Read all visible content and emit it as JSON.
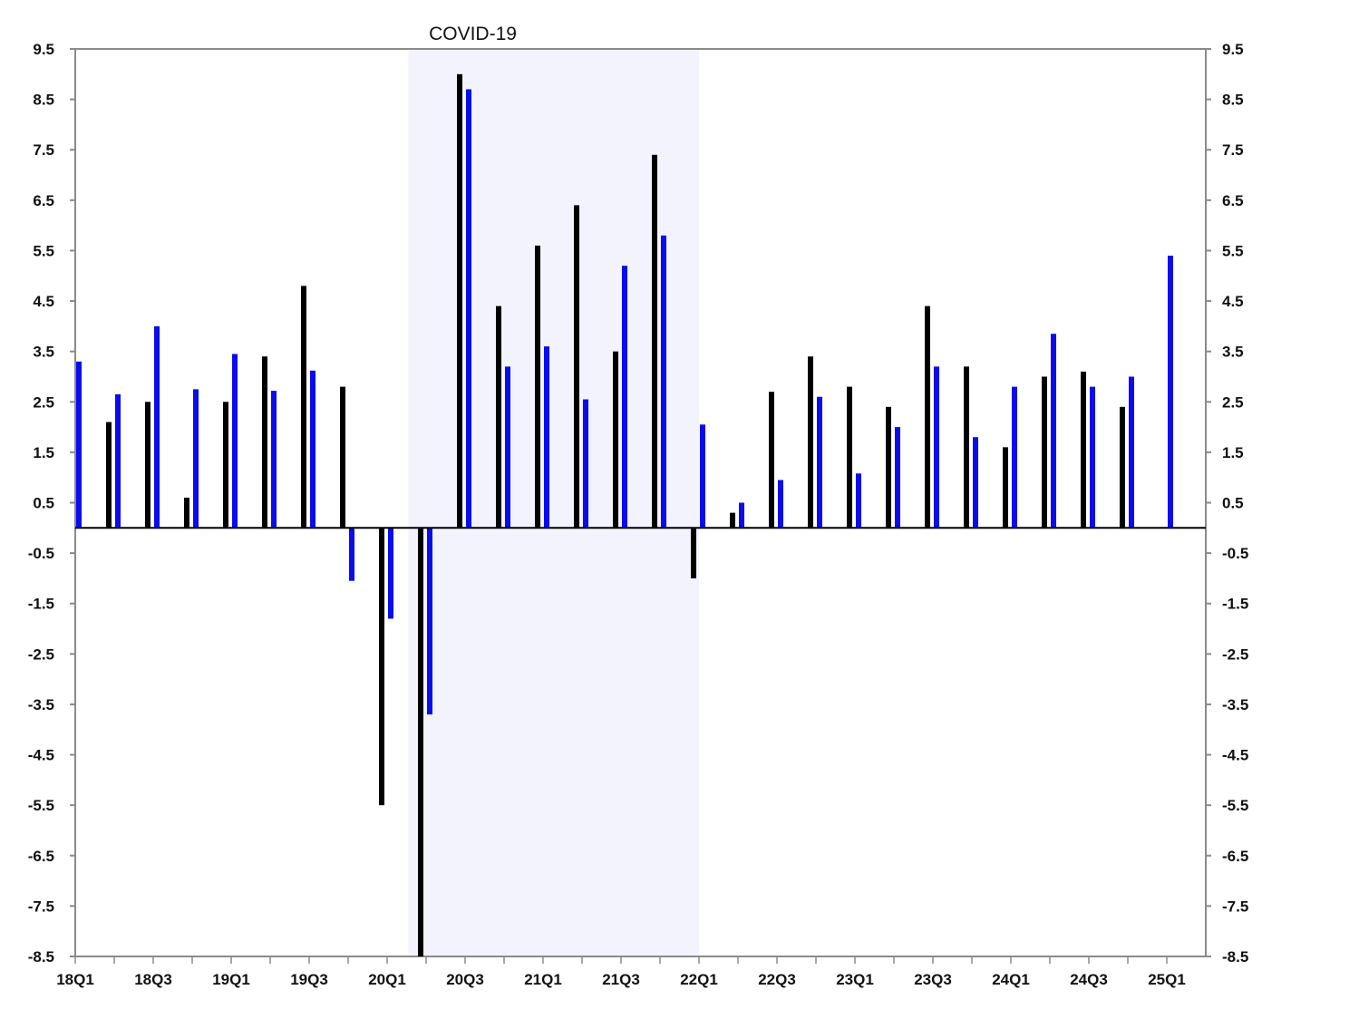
{
  "chart_data": {
    "type": "bar",
    "title": "",
    "xlabel": "",
    "ylabel": "",
    "ylim": [
      -8.5,
      9.5
    ],
    "y_ticks": [
      "9.5",
      "8.5",
      "7.5",
      "6.5",
      "5.5",
      "4.5",
      "3.5",
      "2.5",
      "1.5",
      "0.5",
      "-0.5",
      "-1.5",
      "-2.5",
      "-3.5",
      "-4.5",
      "-5.5",
      "-6.5",
      "-7.5",
      "-8.5"
    ],
    "x_tick_labels": [
      "18Q1",
      "18Q3",
      "19Q1",
      "19Q3",
      "20Q1",
      "20Q3",
      "21Q1",
      "21Q3",
      "22Q1",
      "22Q3",
      "23Q1",
      "23Q3",
      "24Q1",
      "24Q3",
      "25Q1"
    ],
    "categories": [
      "18Q1",
      "18Q2",
      "18Q3",
      "18Q4",
      "19Q1",
      "19Q2",
      "19Q3",
      "19Q4",
      "20Q1",
      "20Q2",
      "20Q3",
      "20Q4",
      "21Q1",
      "21Q2",
      "21Q3",
      "21Q4",
      "22Q1",
      "22Q2",
      "22Q3",
      "22Q4",
      "23Q1",
      "23Q2",
      "23Q3",
      "23Q4",
      "24Q1",
      "24Q2",
      "24Q3",
      "24Q4",
      "25Q1"
    ],
    "series": [
      {
        "color": "#000000",
        "values": [
          null,
          2.1,
          2.5,
          0.6,
          2.5,
          3.4,
          4.8,
          2.8,
          -5.5,
          -8.5,
          9.0,
          4.4,
          5.6,
          6.4,
          3.5,
          7.4,
          -1.0,
          0.3,
          2.7,
          3.4,
          2.8,
          2.4,
          4.4,
          3.2,
          1.6,
          3.0,
          3.1,
          2.4,
          null
        ]
      },
      {
        "color": "#0b0bf0",
        "values": [
          3.3,
          2.65,
          4.0,
          2.75,
          3.45,
          2.72,
          3.12,
          -1.05,
          -1.8,
          -3.7,
          8.7,
          3.2,
          3.6,
          2.55,
          5.2,
          5.8,
          2.05,
          0.5,
          0.95,
          2.6,
          1.08,
          2.0,
          3.2,
          1.8,
          2.8,
          3.85,
          2.8,
          3.0,
          5.4
        ]
      }
    ],
    "shaded_region": {
      "label": "COVID-19",
      "start": "20Q2",
      "end": "22Q1",
      "color": "#f2f3fc"
    },
    "zero_line": true,
    "grid": false,
    "legend": "none"
  }
}
